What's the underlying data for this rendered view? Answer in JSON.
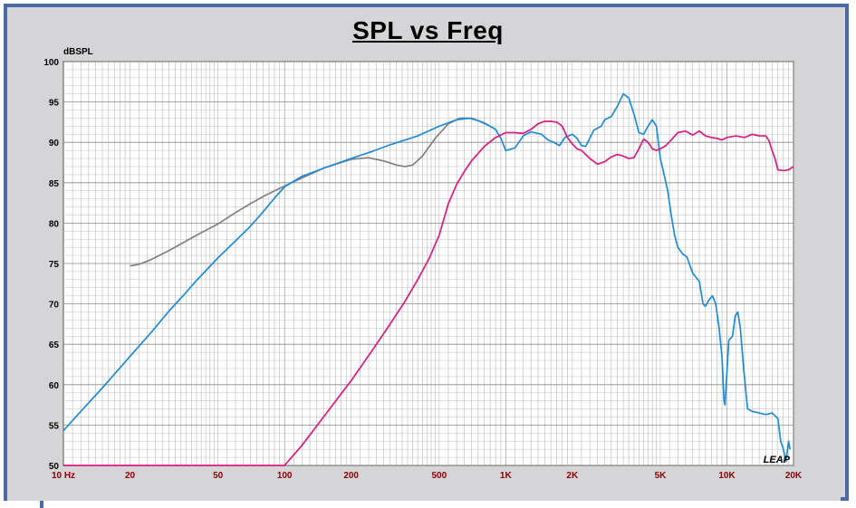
{
  "chart_data": {
    "type": "line",
    "title": "SPL vs Freq",
    "ylabel": "dBSPL",
    "xlabel": "",
    "x_scale": "log",
    "xlim": [
      10,
      20000
    ],
    "ylim": [
      50,
      100
    ],
    "grid": true,
    "watermark": "LEAP",
    "x_tick_labels": [
      {
        "v": 10,
        "t": "10  Hz"
      },
      {
        "v": 20,
        "t": "20"
      },
      {
        "v": 50,
        "t": "50"
      },
      {
        "v": 100,
        "t": "100"
      },
      {
        "v": 200,
        "t": "200"
      },
      {
        "v": 500,
        "t": "500"
      },
      {
        "v": 1000,
        "t": "1K"
      },
      {
        "v": 2000,
        "t": "2K"
      },
      {
        "v": 5000,
        "t": "5K"
      },
      {
        "v": 10000,
        "t": "10K"
      },
      {
        "v": 20000,
        "t": "20K"
      }
    ],
    "y_ticks": [
      100,
      95,
      90,
      85,
      80,
      75,
      70,
      65,
      60,
      55,
      50
    ],
    "series": [
      {
        "color": "#808080",
        "points": [
          [
            20,
            74.7
          ],
          [
            22,
            74.9
          ],
          [
            25,
            75.5
          ],
          [
            30,
            76.6
          ],
          [
            40,
            78.5
          ],
          [
            50,
            79.9
          ],
          [
            60,
            81.3
          ],
          [
            70,
            82.4
          ],
          [
            80,
            83.3
          ],
          [
            90,
            84
          ],
          [
            100,
            84.6
          ],
          [
            120,
            85.6
          ],
          [
            150,
            86.8
          ],
          [
            200,
            87.9
          ],
          [
            240,
            88.1
          ],
          [
            280,
            87.7
          ],
          [
            320,
            87.2
          ],
          [
            350,
            87.0
          ],
          [
            380,
            87.2
          ],
          [
            420,
            88.3
          ],
          [
            480,
            90.5
          ],
          [
            550,
            92.3
          ],
          [
            620,
            93.0
          ],
          [
            680,
            93.0
          ],
          [
            750,
            92.7
          ],
          [
            850,
            92.0
          ],
          [
            900,
            91.6
          ]
        ]
      },
      {
        "color": "#1f8bd8",
        "points": [
          [
            10,
            54.3
          ],
          [
            12,
            56.7
          ],
          [
            15,
            59.6
          ],
          [
            20,
            63.5
          ],
          [
            25,
            66.5
          ],
          [
            30,
            69.1
          ],
          [
            35,
            71.1
          ],
          [
            40,
            72.9
          ],
          [
            50,
            75.7
          ],
          [
            60,
            77.8
          ],
          [
            70,
            79.6
          ],
          [
            80,
            81.4
          ],
          [
            90,
            83.1
          ],
          [
            100,
            84.5
          ],
          [
            120,
            85.8
          ],
          [
            150,
            86.8
          ],
          [
            200,
            88.0
          ],
          [
            250,
            88.9
          ],
          [
            300,
            89.7
          ],
          [
            400,
            90.8
          ],
          [
            500,
            92.0
          ],
          [
            600,
            92.8
          ],
          [
            700,
            93.0
          ],
          [
            800,
            92.4
          ],
          [
            900,
            91.6
          ],
          [
            950,
            90.5
          ],
          [
            1000,
            89.0
          ],
          [
            1100,
            89.3
          ],
          [
            1200,
            90.8
          ],
          [
            1300,
            91.3
          ],
          [
            1450,
            91.0
          ],
          [
            1550,
            90.3
          ],
          [
            1650,
            90.0
          ],
          [
            1750,
            89.6
          ],
          [
            1850,
            90.6
          ],
          [
            2000,
            91.0
          ],
          [
            2100,
            90.5
          ],
          [
            2200,
            89.6
          ],
          [
            2300,
            89.5
          ],
          [
            2500,
            91.5
          ],
          [
            2700,
            92.0
          ],
          [
            2800,
            92.8
          ],
          [
            3000,
            93.2
          ],
          [
            3200,
            94.5
          ],
          [
            3400,
            96.0
          ],
          [
            3600,
            95.5
          ],
          [
            3800,
            93.5
          ],
          [
            4000,
            91.2
          ],
          [
            4200,
            91.0
          ],
          [
            4400,
            92.0
          ],
          [
            4600,
            92.8
          ],
          [
            4800,
            92.0
          ],
          [
            5000,
            88.0
          ],
          [
            5200,
            86.0
          ],
          [
            5400,
            84.0
          ],
          [
            5600,
            81.0
          ],
          [
            5800,
            78.5
          ],
          [
            6000,
            77.0
          ],
          [
            6300,
            76.2
          ],
          [
            6600,
            75.8
          ],
          [
            7000,
            73.8
          ],
          [
            7500,
            72.8
          ],
          [
            7800,
            70.0
          ],
          [
            8000,
            69.7
          ],
          [
            8300,
            70.5
          ],
          [
            8600,
            71.0
          ],
          [
            8900,
            70.0
          ],
          [
            9200,
            67.2
          ],
          [
            9500,
            63.5
          ],
          [
            9700,
            58.0
          ],
          [
            9800,
            57.5
          ],
          [
            10000,
            61.5
          ],
          [
            10200,
            65.5
          ],
          [
            10600,
            66.0
          ],
          [
            10900,
            68.5
          ],
          [
            11200,
            69.0
          ],
          [
            11500,
            67.0
          ],
          [
            11900,
            62.0
          ],
          [
            12400,
            57.0
          ],
          [
            13000,
            56.7
          ],
          [
            14000,
            56.5
          ],
          [
            15000,
            56.3
          ],
          [
            16000,
            56.5
          ],
          [
            17000,
            55.8
          ],
          [
            17500,
            53.0
          ],
          [
            18000,
            52.0
          ],
          [
            18500,
            50.5
          ],
          [
            19000,
            53.0
          ],
          [
            19300,
            52.0
          ]
        ]
      },
      {
        "color": "#d81b7f",
        "points": [
          [
            10,
            50
          ],
          [
            100,
            50
          ],
          [
            120,
            52.5
          ],
          [
            150,
            56.0
          ],
          [
            200,
            60.5
          ],
          [
            250,
            64.3
          ],
          [
            300,
            67.5
          ],
          [
            350,
            70.3
          ],
          [
            400,
            73.0
          ],
          [
            450,
            75.6
          ],
          [
            500,
            78.5
          ],
          [
            550,
            82.4
          ],
          [
            600,
            84.8
          ],
          [
            650,
            86.4
          ],
          [
            700,
            87.7
          ],
          [
            800,
            89.5
          ],
          [
            900,
            90.6
          ],
          [
            1000,
            91.2
          ],
          [
            1100,
            91.2
          ],
          [
            1200,
            91.1
          ],
          [
            1300,
            91.6
          ],
          [
            1400,
            92.3
          ],
          [
            1500,
            92.6
          ],
          [
            1600,
            92.6
          ],
          [
            1700,
            92.5
          ],
          [
            1800,
            92.0
          ],
          [
            1900,
            90.6
          ],
          [
            2000,
            89.8
          ],
          [
            2100,
            89.2
          ],
          [
            2200,
            89.0
          ],
          [
            2400,
            88.0
          ],
          [
            2600,
            87.3
          ],
          [
            2800,
            87.6
          ],
          [
            3000,
            88.2
          ],
          [
            3200,
            88.5
          ],
          [
            3400,
            88.3
          ],
          [
            3600,
            88.0
          ],
          [
            3800,
            88.1
          ],
          [
            4000,
            89.2
          ],
          [
            4200,
            90.4
          ],
          [
            4400,
            90.0
          ],
          [
            4600,
            89.2
          ],
          [
            4800,
            89.0
          ],
          [
            5000,
            89.2
          ],
          [
            5300,
            89.6
          ],
          [
            5600,
            90.3
          ],
          [
            6000,
            91.2
          ],
          [
            6500,
            91.4
          ],
          [
            7000,
            90.9
          ],
          [
            7500,
            91.4
          ],
          [
            8000,
            90.8
          ],
          [
            8500,
            90.6
          ],
          [
            9000,
            90.5
          ],
          [
            9500,
            90.3
          ],
          [
            10000,
            90.6
          ],
          [
            11000,
            90.8
          ],
          [
            12000,
            90.6
          ],
          [
            13000,
            91.0
          ],
          [
            14000,
            90.8
          ],
          [
            15000,
            90.8
          ],
          [
            15500,
            90.2
          ],
          [
            16000,
            89.0
          ],
          [
            16500,
            88.0
          ],
          [
            17000,
            86.6
          ],
          [
            18000,
            86.5
          ],
          [
            19000,
            86.6
          ],
          [
            20000,
            87.0
          ]
        ]
      }
    ]
  }
}
